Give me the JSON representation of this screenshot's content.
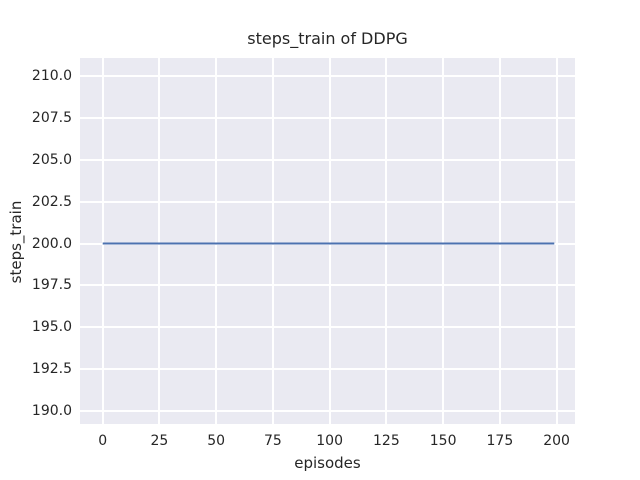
{
  "colors": {
    "line": "#4c72b0",
    "plot_background": "#eaeaf2",
    "gridline": "#ffffff",
    "text": "#262626",
    "figure_background": "#ffffff"
  },
  "chart_data": {
    "type": "line",
    "title": "steps_train of DDPG",
    "xlabel": "episodes",
    "ylabel": "steps_train",
    "xlim": [
      -10,
      208.1
    ],
    "ylim": [
      189.2,
      211.1
    ],
    "xticks": [
      0,
      25,
      50,
      75,
      100,
      125,
      150,
      175,
      200
    ],
    "xtick_labels": [
      "0",
      "25",
      "50",
      "75",
      "100",
      "125",
      "150",
      "175",
      "200"
    ],
    "yticks": [
      190,
      192.5,
      195,
      197.5,
      200,
      202.5,
      205,
      207.5,
      210
    ],
    "ytick_labels": [
      "190.0",
      "192.5",
      "195.0",
      "197.5",
      "200.0",
      "202.5",
      "205.0",
      "207.5",
      "210.0"
    ],
    "grid": true,
    "legend": "none",
    "series": [
      {
        "name": "steps_train",
        "color": "#4c72b0",
        "x": [
          0,
          199
        ],
        "y": [
          200,
          200
        ]
      }
    ]
  }
}
